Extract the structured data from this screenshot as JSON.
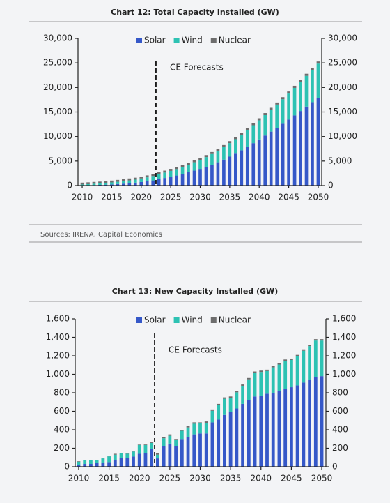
{
  "chart_data": [
    {
      "type": "bar",
      "stacked": true,
      "title": "Chart 12: Total Capacity Installed (GW)",
      "x": [
        2010,
        2011,
        2012,
        2013,
        2014,
        2015,
        2016,
        2017,
        2018,
        2019,
        2020,
        2021,
        2022,
        2023,
        2024,
        2025,
        2026,
        2027,
        2028,
        2029,
        2030,
        2031,
        2032,
        2033,
        2034,
        2035,
        2036,
        2037,
        2038,
        2039,
        2040,
        2041,
        2042,
        2043,
        2044,
        2045,
        2046,
        2047,
        2048,
        2049,
        2050
      ],
      "series": [
        {
          "name": "Solar",
          "color": "#3558c8",
          "values": [
            41,
            72,
            104,
            141,
            180,
            228,
            300,
            393,
            487,
            587,
            720,
            855,
            1050,
            1300,
            1550,
            1800,
            2050,
            2350,
            2700,
            3050,
            3400,
            3800,
            4250,
            4750,
            5300,
            5900,
            6500,
            7200,
            7900,
            8650,
            9400,
            10200,
            11000,
            11800,
            12600,
            13450,
            14300,
            15200,
            16100,
            17000,
            17900
          ]
        },
        {
          "name": "Wind",
          "color": "#2dc2b3",
          "values": [
            181,
            220,
            267,
            300,
            350,
            417,
            467,
            515,
            565,
            623,
            733,
            825,
            900,
            1000,
            1100,
            1200,
            1310,
            1430,
            1560,
            1700,
            1850,
            2010,
            2180,
            2360,
            2550,
            2750,
            2960,
            3180,
            3410,
            3650,
            3900,
            4160,
            4430,
            4710,
            5000,
            5300,
            5610,
            5930,
            6260,
            6600,
            6950
          ]
        },
        {
          "name": "Nuclear",
          "color": "#6d6d6d",
          "values": [
            375,
            370,
            370,
            370,
            375,
            380,
            390,
            395,
            400,
            400,
            395,
            395,
            395,
            400,
            400,
            400,
            400,
            405,
            405,
            405,
            410,
            410,
            410,
            410,
            415,
            415,
            415,
            415,
            420,
            420,
            420,
            420,
            425,
            425,
            425,
            425,
            430,
            430,
            430,
            430,
            435
          ]
        }
      ],
      "xlim": [
        2009.5,
        2050.5
      ],
      "xticks": [
        2010,
        2015,
        2020,
        2025,
        2030,
        2035,
        2040,
        2045,
        2050
      ],
      "ylim": [
        0,
        30000
      ],
      "yticks": [
        0,
        {
          "value": 5000,
          "label": "5,000"
        },
        {
          "value": 10000,
          "label": "10,000"
        },
        {
          "value": 15000,
          "label": "15,000"
        },
        {
          "value": 20000,
          "label": "20,000"
        },
        {
          "value": 25000,
          "label": "25,000"
        },
        {
          "value": 30000,
          "label": "30,000"
        }
      ],
      "y2lim": [
        0,
        30000
      ],
      "y2ticks": [
        0,
        {
          "value": 5000,
          "label": "5,000"
        },
        {
          "value": 10000,
          "label": "10,000"
        },
        {
          "value": 15000,
          "label": "15,000"
        },
        {
          "value": 20000,
          "label": "20,000"
        },
        {
          "value": 25000,
          "label": "25,000"
        },
        {
          "value": 30000,
          "label": "30,000"
        }
      ],
      "annotation": {
        "text": "CE Forecasts",
        "x": 2022.5
      },
      "legend": "top",
      "source": "Sources: IRENA, Capital Economics"
    },
    {
      "type": "bar",
      "stacked": true,
      "title": "Chart 13: New Capacity Installed (GW)",
      "x": [
        2010,
        2011,
        2012,
        2013,
        2014,
        2015,
        2016,
        2017,
        2018,
        2019,
        2020,
        2021,
        2022,
        2023,
        2024,
        2025,
        2026,
        2027,
        2028,
        2029,
        2030,
        2031,
        2032,
        2033,
        2034,
        2035,
        2036,
        2037,
        2038,
        2039,
        2040,
        2041,
        2042,
        2043,
        2044,
        2045,
        2046,
        2047,
        2048,
        2049,
        2050
      ],
      "series": [
        {
          "name": "Solar",
          "color": "#3558c8",
          "values": [
            20,
            30,
            30,
            40,
            40,
            50,
            70,
            95,
            95,
            110,
            140,
            150,
            190,
            90,
            220,
            250,
            220,
            300,
            320,
            350,
            360,
            360,
            480,
            510,
            560,
            590,
            630,
            680,
            720,
            760,
            770,
            790,
            800,
            820,
            840,
            860,
            880,
            910,
            940,
            970,
            980
          ]
        },
        {
          "name": "Wind",
          "color": "#2dc2b3",
          "values": [
            35,
            42,
            38,
            31,
            50,
            62,
            60,
            50,
            46,
            54,
            95,
            84,
            67,
            40,
            88,
            85,
            70,
            88,
            105,
            115,
            108,
            115,
            125,
            155,
            175,
            155,
            175,
            195,
            225,
            255,
            255,
            245,
            275,
            285,
            305,
            295,
            315,
            345,
            365,
            395,
            385
          ]
        },
        {
          "name": "Nuclear",
          "color": "#6d6d6d",
          "values": [
            5,
            3,
            2,
            4,
            5,
            8,
            10,
            5,
            9,
            6,
            5,
            6,
            8,
            20,
            12,
            15,
            10,
            12,
            15,
            15,
            12,
            15,
            15,
            15,
            15,
            15,
            15,
            15,
            15,
            15,
            15,
            15,
            15,
            15,
            15,
            15,
            15,
            15,
            15,
            15,
            15
          ]
        }
      ],
      "xlim": [
        2009.5,
        2050.5
      ],
      "xticks": [
        2010,
        2015,
        2020,
        2025,
        2030,
        2035,
        2040,
        2045,
        2050
      ],
      "ylim": [
        0,
        1600
      ],
      "yticks": [
        0,
        200,
        400,
        600,
        800,
        {
          "value": 1000,
          "label": "1,000"
        },
        {
          "value": 1200,
          "label": "1,200"
        },
        {
          "value": 1400,
          "label": "1,400"
        },
        {
          "value": 1600,
          "label": "1,600"
        }
      ],
      "y2lim": [
        0,
        1600
      ],
      "y2ticks": [
        0,
        200,
        400,
        600,
        800,
        {
          "value": 1000,
          "label": "1,000"
        },
        {
          "value": 1200,
          "label": "1,200"
        },
        {
          "value": 1400,
          "label": "1,400"
        },
        {
          "value": 1600,
          "label": "1,600"
        }
      ],
      "annotation": {
        "text": "CE Forecasts",
        "x": 2022.5
      },
      "legend": "top"
    }
  ]
}
